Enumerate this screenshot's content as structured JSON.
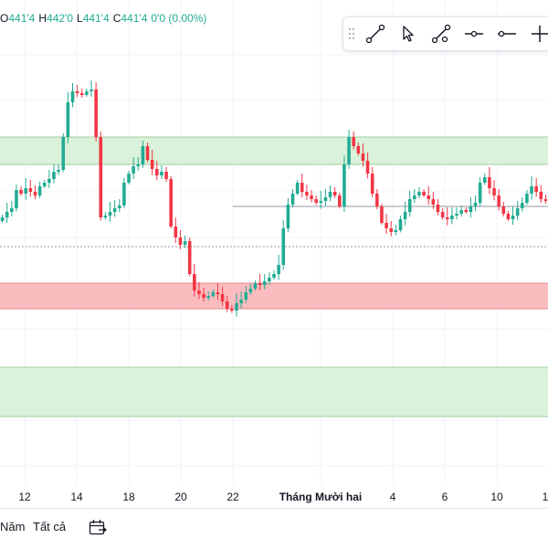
{
  "ohlc": {
    "open_label": "O",
    "open_value": "441'4",
    "high_label": "H",
    "high_value": "442'0",
    "low_label": "L",
    "low_value": "441'4",
    "close_label": "C",
    "close_value": "441'4",
    "change_value": "0'0 (0.00%)"
  },
  "toolbar": {
    "tools": [
      "drag-handle-icon",
      "trend-line-icon",
      "cursor-arrow-icon",
      "path-line-icon",
      "horizontal-ray-icon",
      "extended-line-icon",
      "crosshair-icon"
    ]
  },
  "colors": {
    "up": "#22ab94",
    "down": "#f23645",
    "green_zone": "#d9f2d9",
    "red_zone": "#fbbcbf"
  },
  "chart_data": {
    "type": "candlestick",
    "x_tick_labels": [
      "12",
      "14",
      "18",
      "20",
      "22",
      "Tháng Mười hai",
      "4",
      "6",
      "10",
      "1"
    ],
    "zones": [
      {
        "kind": "resistance",
        "color": "green",
        "y_top": 150,
        "y_bottom": 180
      },
      {
        "kind": "support",
        "color": "red",
        "y_top": 310,
        "y_bottom": 338
      },
      {
        "kind": "demand",
        "color": "green",
        "y_top": 402,
        "y_bottom": 456
      }
    ],
    "reference_lines": [
      {
        "style": "solid",
        "y": 226,
        "from_x": 255
      },
      {
        "style": "dotted",
        "y": 270
      }
    ]
  },
  "bottom_bar": {
    "range_year": "Năm",
    "range_all": "Tất cả"
  }
}
